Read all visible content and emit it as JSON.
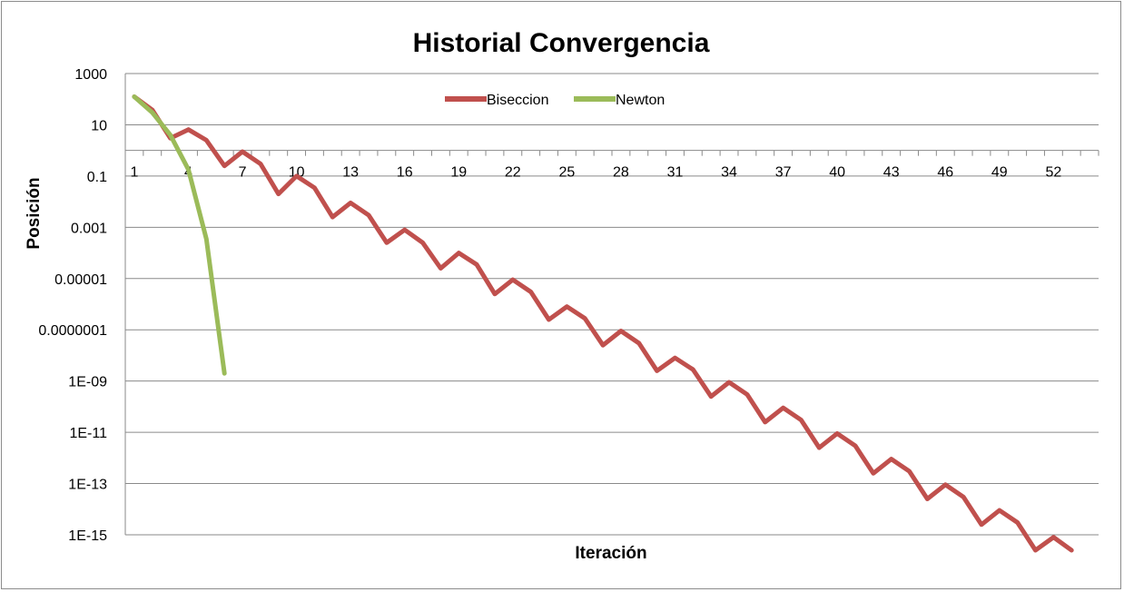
{
  "chart_data": {
    "type": "line",
    "title": "Historial Convergencia",
    "xlabel": "Iteración",
    "ylabel": "Posición",
    "y_scale": "log",
    "ylim": [
      1e-15,
      1000
    ],
    "y_tick_labels": [
      "1000",
      "10",
      "0.1",
      "0.001",
      "0.00001",
      "0.0000001",
      "1E-09",
      "1E-11",
      "1E-13",
      "1E-15"
    ],
    "x_tick_labels": [
      "1",
      "4",
      "7",
      "10",
      "13",
      "16",
      "19",
      "22",
      "25",
      "28",
      "31",
      "34",
      "37",
      "40",
      "43",
      "46",
      "49",
      "52"
    ],
    "x_axis_crosses_y_at": 1,
    "grid": true,
    "legend_position": "top",
    "series": [
      {
        "name": "Biseccion",
        "color": "#c0504d",
        "x": [
          1,
          2,
          3,
          4,
          5,
          6,
          7,
          8,
          9,
          10,
          11,
          12,
          13,
          14,
          15,
          16,
          17,
          18,
          19,
          20,
          21,
          22,
          23,
          24,
          25,
          26,
          27,
          28,
          29,
          30,
          31,
          32,
          33,
          34,
          35,
          36,
          37,
          38,
          39,
          40,
          41,
          42,
          43,
          44,
          45,
          46,
          47,
          48,
          49,
          50,
          51,
          52,
          53
        ],
        "values": [
          125,
          38,
          3,
          6.5,
          2.5,
          0.25,
          0.9,
          0.3,
          0.02,
          0.1,
          0.035,
          0.0025,
          0.009,
          0.003,
          0.00025,
          0.0008,
          0.00025,
          2.5e-05,
          0.0001,
          3.5e-05,
          2.5e-06,
          9e-06,
          3e-06,
          2.5e-07,
          8e-07,
          2.8e-07,
          2.5e-08,
          9e-08,
          3e-08,
          2.5e-09,
          8e-09,
          2.8e-09,
          2.5e-10,
          9e-10,
          3e-10,
          2.5e-11,
          9e-11,
          3e-11,
          2.5e-12,
          9e-12,
          3e-12,
          2.5e-13,
          9e-13,
          3e-13,
          2.5e-14,
          9e-14,
          3e-14,
          2.5e-15,
          9e-15,
          3e-15,
          2.5e-16,
          8e-16,
          2.5e-16
        ]
      },
      {
        "name": "Newton",
        "color": "#9bbb59",
        "x": [
          1,
          2,
          3,
          4,
          5,
          6
        ],
        "values": [
          125,
          30,
          4,
          0.18,
          0.00035,
          2e-09
        ]
      }
    ]
  }
}
